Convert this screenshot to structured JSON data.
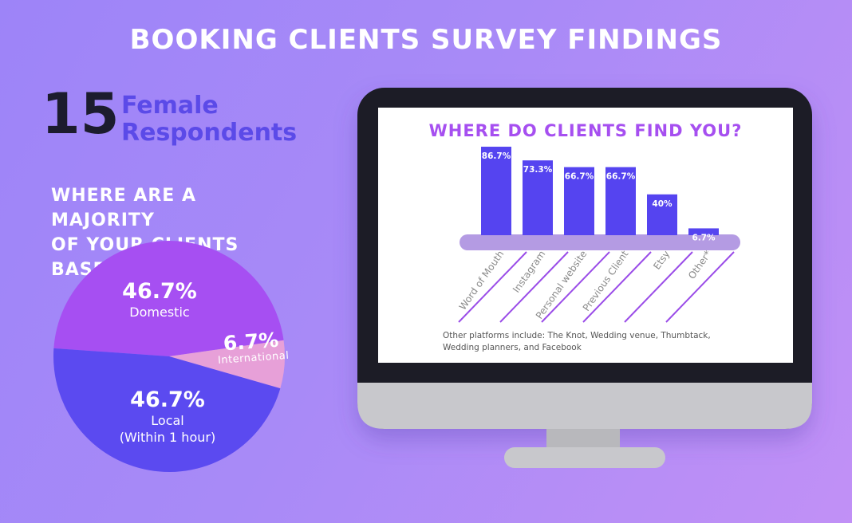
{
  "header": {
    "title": "BOOKING CLIENTS SURVEY FINDINGS"
  },
  "respondents": {
    "count": "15",
    "label_line1": "Female",
    "label_line2": "Respondents"
  },
  "pie_question": {
    "line1": "WHERE ARE A MAJORITY",
    "line2": "OF YOUR CLIENTS BASED?"
  },
  "bar_question": "WHERE DO CLIENTS FIND YOU?",
  "footnote": "Other platforms include: The Knot, Wedding venue, Thumbtack, Wedding planners, and Facebook",
  "colors": {
    "domestic": "#a64ff2",
    "international": "#e7a0d8",
    "local": "#5b4af0",
    "bar": "#5544f0",
    "platform": "#b49be3",
    "monitor_frame": "#1e1e28",
    "monitor_stand": "#c8c8cc"
  },
  "chart_data": [
    {
      "type": "pie",
      "title": "WHERE ARE A MAJORITY OF YOUR CLIENTS BASED?",
      "slices": [
        {
          "name": "Domestic",
          "value": 46.7,
          "label": "46.7%",
          "sublabel": "Domestic"
        },
        {
          "name": "International",
          "value": 6.7,
          "label": "6.7%",
          "sublabel": "International"
        },
        {
          "name": "Local",
          "value": 46.7,
          "label": "46.7%",
          "sublabel_line1": "Local",
          "sublabel_line2": "(Within 1 hour)"
        }
      ]
    },
    {
      "type": "bar",
      "title": "WHERE DO CLIENTS FIND YOU?",
      "categories": [
        "Word of Mouth",
        "Instagram",
        "Personal website",
        "Previous Client",
        "Etsy",
        "Other*"
      ],
      "values": [
        86.7,
        73.3,
        66.7,
        66.7,
        40,
        6.7
      ],
      "value_labels": [
        "86.7%",
        "73.3%",
        "66.7%",
        "66.7%",
        "40%",
        "6.7%"
      ],
      "ylim": [
        0,
        100
      ]
    }
  ]
}
